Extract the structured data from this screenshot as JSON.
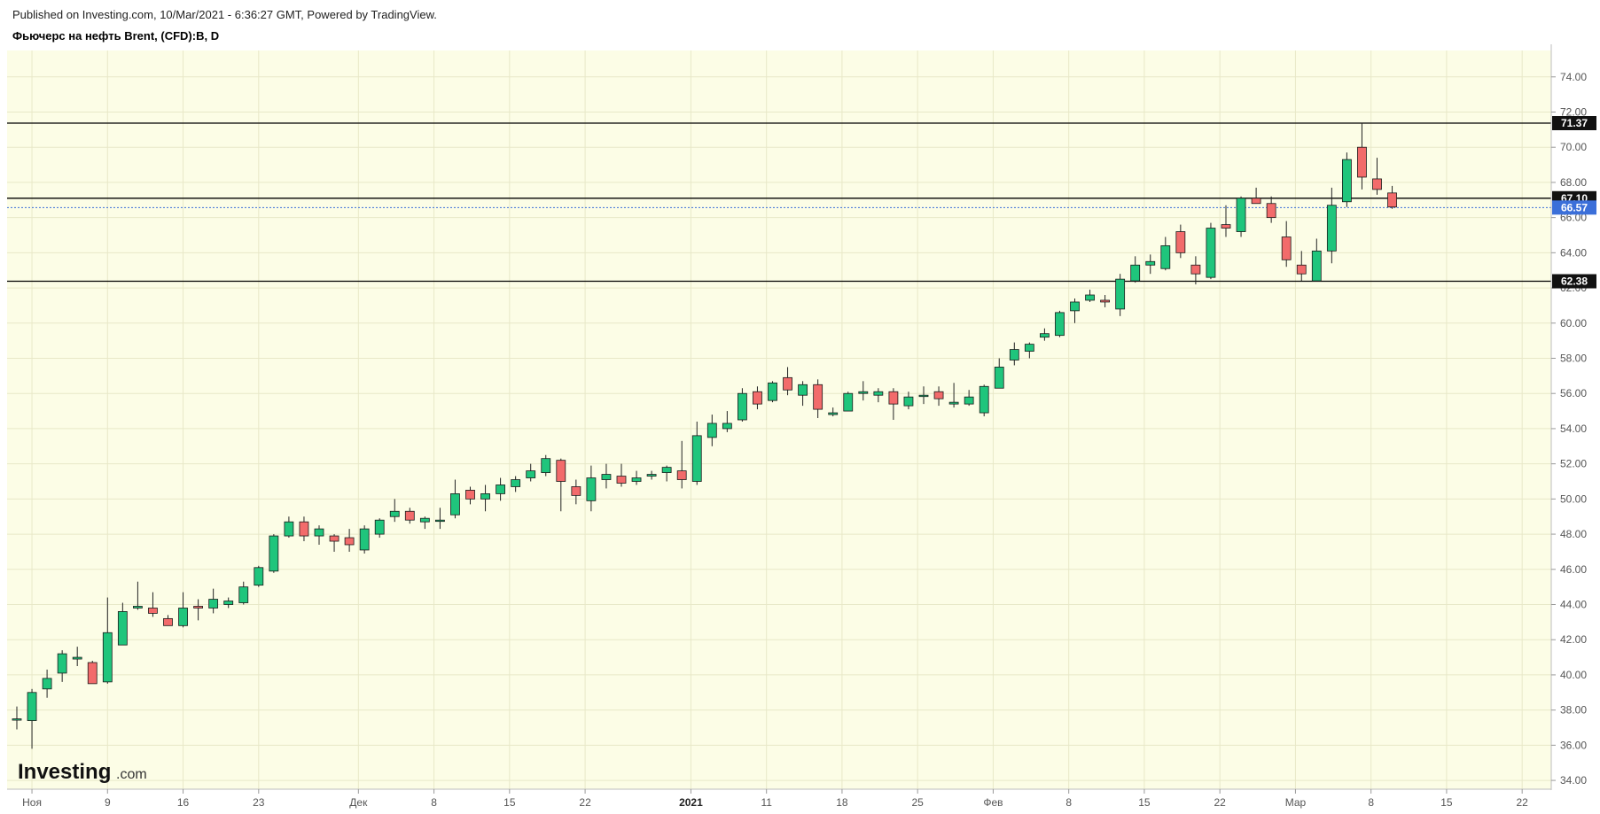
{
  "header": {
    "published": "Published on Investing.com, 10/Mar/2021 - 6:36:27 GMT, Powered by TradingView.",
    "title": "Фьючерс на нефть Brent, (CFD):B, D"
  },
  "logo": {
    "main": "Investing",
    "suffix": ".com"
  },
  "colors": {
    "background": "#fcfde6",
    "up": "#1fc57c",
    "down": "#f26b6b",
    "wick": "#222222",
    "grid": "#e8e8c8",
    "level_line": "#000000",
    "current_price": "#3b6fd9"
  },
  "chart_data": {
    "type": "candlestick",
    "title": "Фьючерс на нефть Brent, (CFD):B, D",
    "ylim": [
      33.5,
      75.5
    ],
    "y_ticks": [
      "74.00",
      "72.00",
      "70.00",
      "68.00",
      "66.00",
      "64.00",
      "62.00",
      "60.00",
      "58.00",
      "56.00",
      "54.00",
      "52.00",
      "50.00",
      "48.00",
      "46.00",
      "44.00",
      "42.00",
      "40.00",
      "38.00",
      "36.00",
      "34.00"
    ],
    "x_ticks": [
      {
        "label": "Ноя",
        "bold": false,
        "i": 1
      },
      {
        "label": "9",
        "bold": false,
        "i": 6
      },
      {
        "label": "16",
        "bold": false,
        "i": 11
      },
      {
        "label": "23",
        "bold": false,
        "i": 16
      },
      {
        "label": "Дек",
        "bold": false,
        "i": 22.6
      },
      {
        "label": "8",
        "bold": false,
        "i": 27.6
      },
      {
        "label": "15",
        "bold": false,
        "i": 32.6
      },
      {
        "label": "22",
        "bold": false,
        "i": 37.6
      },
      {
        "label": "2021",
        "bold": true,
        "i": 44.6
      },
      {
        "label": "11",
        "bold": false,
        "i": 49.6
      },
      {
        "label": "18",
        "bold": false,
        "i": 54.6
      },
      {
        "label": "25",
        "bold": false,
        "i": 59.6
      },
      {
        "label": "Фев",
        "bold": false,
        "i": 64.6
      },
      {
        "label": "8",
        "bold": false,
        "i": 69.6
      },
      {
        "label": "15",
        "bold": false,
        "i": 74.6
      },
      {
        "label": "22",
        "bold": false,
        "i": 79.6
      },
      {
        "label": "Мар",
        "bold": false,
        "i": 84.6
      },
      {
        "label": "8",
        "bold": false,
        "i": 89.6
      },
      {
        "label": "15",
        "bold": false,
        "i": 94.6
      },
      {
        "label": "22",
        "bold": false,
        "i": 99.6
      }
    ],
    "levels": [
      {
        "value": 71.37,
        "label": "71.37"
      },
      {
        "value": 67.1,
        "label": "67.10"
      },
      {
        "value": 62.38,
        "label": "62.38"
      }
    ],
    "current_price": {
      "value": 66.57,
      "label": "66.57"
    },
    "candles": [
      {
        "o": 37.5,
        "h": 38.2,
        "l": 36.9,
        "c": 37.5
      },
      {
        "o": 37.4,
        "h": 39.2,
        "l": 35.8,
        "c": 39.0
      },
      {
        "o": 39.2,
        "h": 40.3,
        "l": 38.7,
        "c": 39.8
      },
      {
        "o": 40.1,
        "h": 41.4,
        "l": 39.6,
        "c": 41.2
      },
      {
        "o": 40.9,
        "h": 41.6,
        "l": 40.5,
        "c": 41.0
      },
      {
        "o": 40.7,
        "h": 40.8,
        "l": 39.5,
        "c": 39.5
      },
      {
        "o": 39.6,
        "h": 44.4,
        "l": 39.5,
        "c": 42.4
      },
      {
        "o": 41.7,
        "h": 44.1,
        "l": 41.7,
        "c": 43.6
      },
      {
        "o": 43.8,
        "h": 45.3,
        "l": 43.7,
        "c": 43.9
      },
      {
        "o": 43.8,
        "h": 44.7,
        "l": 43.3,
        "c": 43.5
      },
      {
        "o": 43.2,
        "h": 43.4,
        "l": 42.8,
        "c": 42.8
      },
      {
        "o": 42.8,
        "h": 44.7,
        "l": 42.7,
        "c": 43.8
      },
      {
        "o": 43.9,
        "h": 44.3,
        "l": 43.1,
        "c": 43.8
      },
      {
        "o": 43.8,
        "h": 44.9,
        "l": 43.5,
        "c": 44.3
      },
      {
        "o": 44.0,
        "h": 44.4,
        "l": 43.8,
        "c": 44.2
      },
      {
        "o": 44.1,
        "h": 45.3,
        "l": 44.0,
        "c": 45.0
      },
      {
        "o": 45.1,
        "h": 46.2,
        "l": 45.0,
        "c": 46.1
      },
      {
        "o": 45.9,
        "h": 48.0,
        "l": 45.8,
        "c": 47.9
      },
      {
        "o": 47.9,
        "h": 49.0,
        "l": 47.8,
        "c": 48.7
      },
      {
        "o": 48.7,
        "h": 49.0,
        "l": 47.6,
        "c": 47.9
      },
      {
        "o": 47.9,
        "h": 48.5,
        "l": 47.4,
        "c": 48.3
      },
      {
        "o": 47.9,
        "h": 48.0,
        "l": 47.0,
        "c": 47.6
      },
      {
        "o": 47.8,
        "h": 48.3,
        "l": 47.0,
        "c": 47.4
      },
      {
        "o": 47.1,
        "h": 48.5,
        "l": 46.9,
        "c": 48.3
      },
      {
        "o": 48.0,
        "h": 48.9,
        "l": 47.8,
        "c": 48.8
      },
      {
        "o": 49.0,
        "h": 50.0,
        "l": 48.7,
        "c": 49.3
      },
      {
        "o": 49.3,
        "h": 49.5,
        "l": 48.6,
        "c": 48.8
      },
      {
        "o": 48.7,
        "h": 49.0,
        "l": 48.3,
        "c": 48.9
      },
      {
        "o": 48.8,
        "h": 49.5,
        "l": 48.3,
        "c": 48.8
      },
      {
        "o": 49.1,
        "h": 51.1,
        "l": 48.9,
        "c": 50.3
      },
      {
        "o": 50.5,
        "h": 50.7,
        "l": 49.7,
        "c": 50.0
      },
      {
        "o": 50.0,
        "h": 50.8,
        "l": 49.3,
        "c": 50.3
      },
      {
        "o": 50.3,
        "h": 51.2,
        "l": 49.9,
        "c": 50.8
      },
      {
        "o": 50.7,
        "h": 51.3,
        "l": 50.4,
        "c": 51.1
      },
      {
        "o": 51.2,
        "h": 52.0,
        "l": 51.0,
        "c": 51.6
      },
      {
        "o": 51.5,
        "h": 52.5,
        "l": 51.3,
        "c": 52.3
      },
      {
        "o": 52.2,
        "h": 52.3,
        "l": 49.3,
        "c": 51.0
      },
      {
        "o": 50.7,
        "h": 51.1,
        "l": 49.7,
        "c": 50.2
      },
      {
        "o": 49.9,
        "h": 51.9,
        "l": 49.3,
        "c": 51.2
      },
      {
        "o": 51.1,
        "h": 52.0,
        "l": 50.6,
        "c": 51.4
      },
      {
        "o": 51.3,
        "h": 52.0,
        "l": 50.7,
        "c": 50.9
      },
      {
        "o": 51.0,
        "h": 51.6,
        "l": 50.8,
        "c": 51.2
      },
      {
        "o": 51.3,
        "h": 51.6,
        "l": 51.1,
        "c": 51.4
      },
      {
        "o": 51.5,
        "h": 51.9,
        "l": 51.0,
        "c": 51.8
      },
      {
        "o": 51.6,
        "h": 53.3,
        "l": 50.6,
        "c": 51.1
      },
      {
        "o": 51.0,
        "h": 54.4,
        "l": 50.8,
        "c": 53.6
      },
      {
        "o": 53.5,
        "h": 54.8,
        "l": 53.0,
        "c": 54.3
      },
      {
        "o": 54.0,
        "h": 55.0,
        "l": 53.8,
        "c": 54.3
      },
      {
        "o": 54.5,
        "h": 56.3,
        "l": 54.4,
        "c": 56.0
      },
      {
        "o": 56.1,
        "h": 56.4,
        "l": 55.1,
        "c": 55.4
      },
      {
        "o": 55.6,
        "h": 56.7,
        "l": 55.5,
        "c": 56.6
      },
      {
        "o": 56.9,
        "h": 57.5,
        "l": 55.9,
        "c": 56.2
      },
      {
        "o": 55.9,
        "h": 56.7,
        "l": 55.3,
        "c": 56.5
      },
      {
        "o": 56.5,
        "h": 56.8,
        "l": 54.6,
        "c": 55.1
      },
      {
        "o": 54.8,
        "h": 55.2,
        "l": 54.7,
        "c": 54.9
      },
      {
        "o": 55.0,
        "h": 56.1,
        "l": 55.0,
        "c": 56.0
      },
      {
        "o": 56.0,
        "h": 56.7,
        "l": 55.6,
        "c": 56.1
      },
      {
        "o": 55.9,
        "h": 56.3,
        "l": 55.5,
        "c": 56.1
      },
      {
        "o": 56.1,
        "h": 56.3,
        "l": 54.5,
        "c": 55.4
      },
      {
        "o": 55.3,
        "h": 56.1,
        "l": 55.1,
        "c": 55.8
      },
      {
        "o": 55.9,
        "h": 56.4,
        "l": 55.4,
        "c": 55.9
      },
      {
        "o": 56.1,
        "h": 56.4,
        "l": 55.3,
        "c": 55.7
      },
      {
        "o": 55.4,
        "h": 56.6,
        "l": 55.2,
        "c": 55.5
      },
      {
        "o": 55.4,
        "h": 56.2,
        "l": 55.3,
        "c": 55.8
      },
      {
        "o": 54.9,
        "h": 56.5,
        "l": 54.7,
        "c": 56.4
      },
      {
        "o": 56.3,
        "h": 58.0,
        "l": 56.3,
        "c": 57.5
      },
      {
        "o": 57.9,
        "h": 58.9,
        "l": 57.6,
        "c": 58.5
      },
      {
        "o": 58.4,
        "h": 58.9,
        "l": 58.0,
        "c": 58.8
      },
      {
        "o": 59.2,
        "h": 59.7,
        "l": 59.0,
        "c": 59.4
      },
      {
        "o": 59.3,
        "h": 60.7,
        "l": 59.2,
        "c": 60.6
      },
      {
        "o": 60.7,
        "h": 61.4,
        "l": 60.0,
        "c": 61.2
      },
      {
        "o": 61.3,
        "h": 61.9,
        "l": 61.2,
        "c": 61.6
      },
      {
        "o": 61.3,
        "h": 61.6,
        "l": 60.9,
        "c": 61.2
      },
      {
        "o": 60.8,
        "h": 62.8,
        "l": 60.4,
        "c": 62.5
      },
      {
        "o": 62.4,
        "h": 63.8,
        "l": 62.3,
        "c": 63.3
      },
      {
        "o": 63.3,
        "h": 63.9,
        "l": 62.8,
        "c": 63.5
      },
      {
        "o": 63.1,
        "h": 64.9,
        "l": 63.0,
        "c": 64.4
      },
      {
        "o": 65.2,
        "h": 65.6,
        "l": 63.7,
        "c": 64.0
      },
      {
        "o": 63.3,
        "h": 63.8,
        "l": 62.2,
        "c": 62.8
      },
      {
        "o": 62.6,
        "h": 65.7,
        "l": 62.5,
        "c": 65.4
      },
      {
        "o": 65.6,
        "h": 66.7,
        "l": 64.9,
        "c": 65.4
      },
      {
        "o": 65.2,
        "h": 67.2,
        "l": 64.9,
        "c": 67.1
      },
      {
        "o": 67.1,
        "h": 67.7,
        "l": 66.9,
        "c": 66.8
      },
      {
        "o": 66.8,
        "h": 67.2,
        "l": 65.7,
        "c": 66.0
      },
      {
        "o": 64.9,
        "h": 65.8,
        "l": 63.2,
        "c": 63.6
      },
      {
        "o": 63.3,
        "h": 64.1,
        "l": 62.4,
        "c": 62.8
      },
      {
        "o": 62.4,
        "h": 64.8,
        "l": 62.4,
        "c": 64.1
      },
      {
        "o": 64.1,
        "h": 67.7,
        "l": 63.4,
        "c": 66.7
      },
      {
        "o": 66.9,
        "h": 69.7,
        "l": 66.6,
        "c": 69.3
      },
      {
        "o": 70.0,
        "h": 71.4,
        "l": 67.6,
        "c": 68.3
      },
      {
        "o": 68.2,
        "h": 69.4,
        "l": 67.3,
        "c": 67.6
      },
      {
        "o": 67.4,
        "h": 67.8,
        "l": 66.5,
        "c": 66.6
      }
    ]
  }
}
